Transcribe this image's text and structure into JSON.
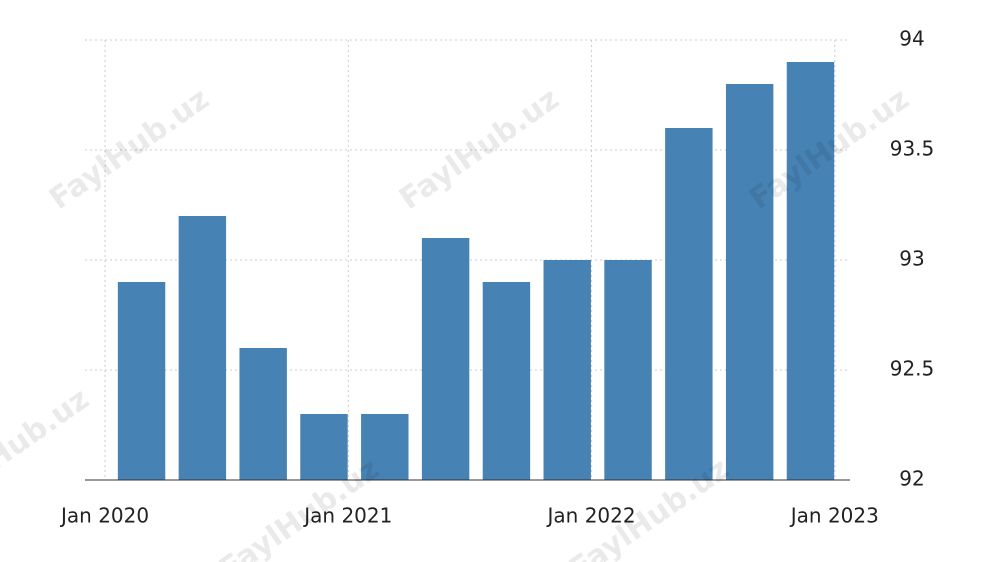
{
  "chart_data": {
    "type": "bar",
    "values": [
      92.9,
      93.2,
      92.6,
      92.3,
      92.3,
      93.1,
      92.9,
      93.0,
      93.0,
      93.6,
      93.8,
      93.9
    ],
    "color": "#4682b4",
    "xlim": [
      -0.33,
      12.25
    ],
    "xticks": [
      {
        "value": 0,
        "label": "Jan 2020"
      },
      {
        "value": 4,
        "label": "Jan 2021"
      },
      {
        "value": 8,
        "label": "Jan 2022"
      },
      {
        "value": 12,
        "label": "Jan 2023"
      }
    ],
    "ylim": [
      92,
      94
    ],
    "yticks": [
      92,
      92.5,
      93,
      93.5,
      94
    ],
    "grid": true,
    "watermark": "FaylHub.uz"
  }
}
